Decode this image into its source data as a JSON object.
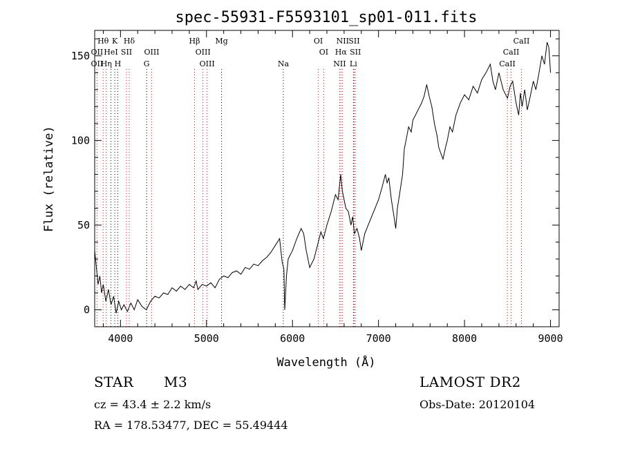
{
  "chart_data": {
    "type": "line",
    "title": "spec-55931-F5593101_sp01-011.fits",
    "xlabel": "Wavelength (Å)",
    "ylabel": "Flux (relative)",
    "xlim": [
      3700,
      9100
    ],
    "ylim": [
      -10,
      165
    ],
    "x_ticks": [
      "4000",
      "5000",
      "6000",
      "7000",
      "8000",
      "9000"
    ],
    "y_ticks": [
      "0",
      "50",
      "100",
      "150"
    ],
    "grid": false,
    "series": [
      {
        "x": [
          3700,
          3720,
          3740,
          3760,
          3780,
          3800,
          3830,
          3860,
          3890,
          3920,
          3950,
          3980,
          4010,
          4040,
          4080,
          4120,
          4160,
          4200,
          4250,
          4300,
          4350,
          4400,
          4450,
          4500,
          4550,
          4600,
          4650,
          4700,
          4750,
          4800,
          4850,
          4880,
          4900,
          4950,
          5000,
          5050,
          5100,
          5150,
          5200,
          5250,
          5300,
          5350,
          5400,
          5450,
          5500,
          5550,
          5600,
          5650,
          5700,
          5750,
          5800,
          5850,
          5880,
          5900,
          5910,
          5930,
          5950,
          6000,
          6050,
          6100,
          6130,
          6160,
          6200,
          6250,
          6300,
          6330,
          6360,
          6400,
          6450,
          6500,
          6530,
          6560,
          6580,
          6600,
          6620,
          6650,
          6680,
          6700,
          6720,
          6750,
          6780,
          6800,
          6840,
          6880,
          6920,
          6960,
          7000,
          7040,
          7080,
          7100,
          7120,
          7150,
          7180,
          7200,
          7220,
          7250,
          7280,
          7300,
          7320,
          7350,
          7380,
          7400,
          7430,
          7460,
          7500,
          7530,
          7560,
          7590,
          7620,
          7650,
          7680,
          7700,
          7720,
          7750,
          7780,
          7800,
          7830,
          7860,
          7900,
          7950,
          8000,
          8050,
          8100,
          8150,
          8200,
          8250,
          8300,
          8330,
          8360,
          8400,
          8450,
          8500,
          8530,
          8560,
          8600,
          8630,
          8650,
          8670,
          8700,
          8730,
          8760,
          8800,
          8830,
          8860,
          8900,
          8930,
          8960,
          8980,
          9000
        ],
        "y": [
          35,
          25,
          15,
          20,
          10,
          15,
          5,
          12,
          3,
          8,
          -2,
          5,
          0,
          3,
          -1,
          4,
          0,
          6,
          2,
          0,
          5,
          8,
          7,
          10,
          9,
          13,
          11,
          14,
          12,
          15,
          13,
          17,
          12,
          15,
          14,
          16,
          13,
          18,
          20,
          19,
          22,
          23,
          21,
          25,
          24,
          27,
          26,
          29,
          31,
          34,
          38,
          42,
          28,
          24,
          0,
          20,
          30,
          35,
          42,
          48,
          45,
          35,
          25,
          30,
          40,
          46,
          42,
          50,
          58,
          68,
          65,
          80,
          70,
          65,
          60,
          58,
          50,
          55,
          45,
          48,
          42,
          35,
          45,
          50,
          55,
          60,
          65,
          72,
          80,
          75,
          78,
          65,
          55,
          48,
          60,
          70,
          80,
          95,
          100,
          108,
          105,
          112,
          115,
          118,
          122,
          126,
          133,
          126,
          120,
          110,
          103,
          96,
          93,
          89,
          96,
          100,
          108,
          105,
          115,
          122,
          127,
          124,
          132,
          128,
          136,
          140,
          145,
          135,
          130,
          140,
          130,
          125,
          132,
          135,
          122,
          115,
          128,
          120,
          130,
          118,
          125,
          135,
          130,
          138,
          150,
          145,
          158,
          155,
          140
        ]
      }
    ],
    "annotations": {
      "lines": [
        {
          "label": "Hθ",
          "row": 1,
          "x": 3798,
          "color": "#cc0000"
        },
        {
          "label": "K",
          "row": 1,
          "x": 3934,
          "color": "#000000"
        },
        {
          "label": "Hδ",
          "row": 1,
          "x": 4102,
          "color": "#cc0000"
        },
        {
          "label": "Hβ",
          "row": 1,
          "x": 4861,
          "color": "#cc0000"
        },
        {
          "label": "Mg",
          "row": 1,
          "x": 5175,
          "color": "#000000"
        },
        {
          "label": "OI",
          "row": 1,
          "x": 6300,
          "color": "#cc0000"
        },
        {
          "label": "NII",
          "row": 1,
          "x": 6583,
          "color": "#cc0000"
        },
        {
          "label": "SII",
          "row": 1,
          "x": 6717,
          "color": "#cc0000"
        },
        {
          "label": "CaII",
          "row": 1,
          "x": 8662,
          "color": "#cc0000"
        },
        {
          "label": "OII",
          "row": 2,
          "x": 3727,
          "color": "#cc0000"
        },
        {
          "label": "HeI",
          "row": 2,
          "x": 3889,
          "color": "#000000"
        },
        {
          "label": "SII",
          "row": 2,
          "x": 4070,
          "color": "#cc0000"
        },
        {
          "label": "OIII",
          "row": 2,
          "x": 4363,
          "color": "#cc0000"
        },
        {
          "label": "OIII",
          "row": 2,
          "x": 4959,
          "color": "#cc0000"
        },
        {
          "label": "OI",
          "row": 2,
          "x": 6363,
          "color": "#cc0000"
        },
        {
          "label": "Hα",
          "row": 2,
          "x": 6563,
          "color": "#cc0000"
        },
        {
          "label": "SII",
          "row": 2,
          "x": 6731,
          "color": "#cc0000"
        },
        {
          "label": "CaII",
          "row": 2,
          "x": 8542,
          "color": "#cc0000"
        },
        {
          "label": "OII",
          "row": 3,
          "x": 3727,
          "color": "#cc0000"
        },
        {
          "label": "Hη",
          "row": 3,
          "x": 3835,
          "color": "#cc0000"
        },
        {
          "label": "H",
          "row": 3,
          "x": 3969,
          "color": "#000000"
        },
        {
          "label": "G",
          "row": 3,
          "x": 4304,
          "color": "#000000"
        },
        {
          "label": "OIII",
          "row": 3,
          "x": 5007,
          "color": "#cc0000"
        },
        {
          "label": "Na",
          "row": 3,
          "x": 5893,
          "color": "#000000"
        },
        {
          "label": "NII",
          "row": 3,
          "x": 6548,
          "color": "#cc0000"
        },
        {
          "label": "Li",
          "row": 3,
          "x": 6708,
          "color": "#000000"
        },
        {
          "label": "CaII",
          "row": 3,
          "x": 8498,
          "color": "#cc0000"
        }
      ]
    }
  },
  "footer": {
    "object_class": "STAR",
    "subclass": "M3",
    "survey": "LAMOST DR2",
    "cz": "cz = 43.4 ± 2.2 km/s",
    "obs_date": "Obs-Date: 20120104",
    "coords": "RA = 178.53477, DEC =  55.49444"
  }
}
